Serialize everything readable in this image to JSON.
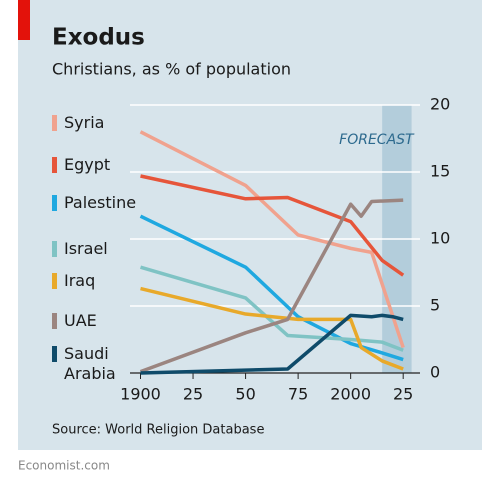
{
  "chart_data": {
    "type": "line",
    "title": "Exodus",
    "subtitle": "Christians, as % of population",
    "source": "Source: World Religion Database",
    "footer": "Economist.com",
    "annotation": {
      "text": "FORECAST",
      "x_range": [
        2015,
        2029
      ]
    },
    "xlim": [
      1895,
      2033
    ],
    "xticks": [
      1900,
      {
        "value": 1925,
        "label": "25"
      },
      {
        "value": 1950,
        "label": "50"
      },
      {
        "value": 1975,
        "label": "75"
      },
      2000,
      {
        "value": 2025,
        "label": "25"
      }
    ],
    "ylim": [
      0,
      20
    ],
    "yticks": [
      0,
      5,
      10,
      15,
      20
    ],
    "grid": true,
    "series": [
      {
        "name": "Syria",
        "color": "#f0a28e",
        "x": [
          1900,
          1950,
          1975,
          2000,
          2010,
          2025
        ],
        "values": [
          18,
          14,
          10.3,
          9.3,
          9,
          1.9
        ]
      },
      {
        "name": "Egypt",
        "color": "#e6553a",
        "x": [
          1900,
          1950,
          1970,
          2000,
          2015,
          2025
        ],
        "values": [
          14.7,
          13,
          13.1,
          11.3,
          8.4,
          7.3
        ]
      },
      {
        "name": "Palestine",
        "color": "#1fa8e0",
        "x": [
          1900,
          1950,
          1975,
          2000,
          2015,
          2025
        ],
        "values": [
          11.7,
          7.9,
          4.2,
          2.2,
          1.5,
          1
        ]
      },
      {
        "name": "Israel",
        "color": "#7fc3c4",
        "x": [
          1900,
          1950,
          1970,
          2000,
          2015,
          2025
        ],
        "values": [
          7.9,
          5.6,
          2.8,
          2.5,
          2.3,
          1.7
        ]
      },
      {
        "name": "Iraq",
        "color": "#e8a92a",
        "x": [
          1900,
          1950,
          1975,
          2000,
          2005,
          2015,
          2025
        ],
        "values": [
          6.3,
          4.4,
          4,
          4,
          1.9,
          0.9,
          0.3
        ]
      },
      {
        "name": "UAE",
        "color": "#9b8580",
        "x": [
          1900,
          1950,
          1970,
          2000,
          2005,
          2010,
          2025
        ],
        "values": [
          0.1,
          3,
          4,
          12.6,
          11.7,
          12.8,
          12.9
        ]
      },
      {
        "name": "Saudi Arabia",
        "color": "#0f4b6a",
        "x": [
          1900,
          1970,
          2000,
          2010,
          2015,
          2020,
          2025
        ],
        "values": [
          0,
          0.3,
          4.3,
          4.2,
          4.3,
          4.2,
          4
        ]
      }
    ]
  }
}
